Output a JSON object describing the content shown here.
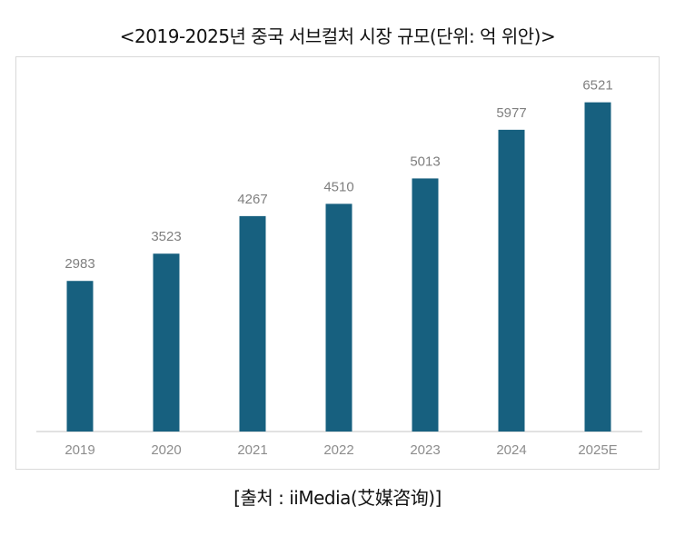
{
  "chart_data": {
    "type": "bar",
    "title": "<2019-2025년 중국 서브컬처 시장 규모(단위: 억 위안)>",
    "categories": [
      "2019",
      "2020",
      "2021",
      "2022",
      "2023",
      "2024",
      "2025E"
    ],
    "values": [
      2983,
      3523,
      4267,
      4510,
      5013,
      5977,
      6521
    ],
    "xlabel": "",
    "ylabel": "",
    "ylim": [
      0,
      7000
    ],
    "grid": false,
    "bar_color": "#17607f",
    "source": "[출처 : iiMedia(艾媒咨询)]"
  }
}
